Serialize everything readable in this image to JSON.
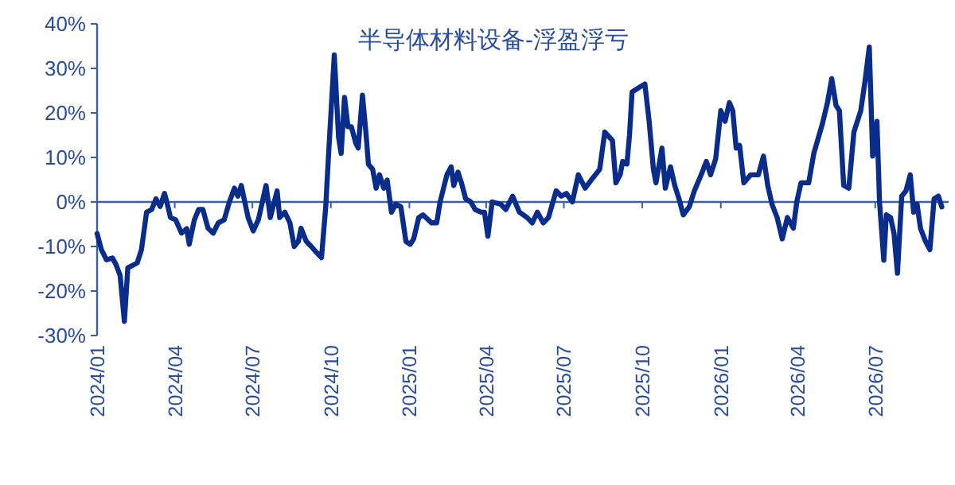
{
  "chart_data": {
    "type": "line",
    "title": "半导体材料设备-浮盈浮亏",
    "x": [
      "2024-01-01",
      "2024-01-06",
      "2024-01-12",
      "2024-01-19",
      "2024-01-23",
      "2024-01-28",
      "2024-02-02",
      "2024-02-06",
      "2024-02-17",
      "2024-02-22",
      "2024-02-28",
      "2024-03-05",
      "2024-03-10",
      "2024-03-15",
      "2024-03-20",
      "2024-03-24",
      "2024-03-27",
      "2024-04-02",
      "2024-04-09",
      "2024-04-15",
      "2024-04-18",
      "2024-04-24",
      "2024-04-29",
      "2024-05-04",
      "2024-05-10",
      "2024-05-16",
      "2024-05-22",
      "2024-05-29",
      "2024-06-04",
      "2024-06-10",
      "2024-06-14",
      "2024-06-18",
      "2024-06-26",
      "2024-07-02",
      "2024-07-08",
      "2024-07-17",
      "2024-07-22",
      "2024-07-26",
      "2024-07-30",
      "2024-08-02",
      "2024-08-08",
      "2024-08-14",
      "2024-08-19",
      "2024-08-24",
      "2024-08-27",
      "2024-09-02",
      "2024-09-08",
      "2024-09-14",
      "2024-09-20",
      "2024-09-25",
      "2024-09-28",
      "2024-10-05",
      "2024-10-10",
      "2024-10-13",
      "2024-10-17",
      "2024-10-21",
      "2024-10-25",
      "2024-10-30",
      "2024-11-02",
      "2024-11-07",
      "2024-11-11",
      "2024-11-14",
      "2024-11-19",
      "2024-11-23",
      "2024-11-27",
      "2024-12-02",
      "2024-12-06",
      "2024-12-11",
      "2024-12-16",
      "2024-12-22",
      "2024-12-28",
      "2025-01-02",
      "2025-01-06",
      "2025-01-12",
      "2025-01-17",
      "2025-01-27",
      "2025-02-02",
      "2025-02-06",
      "2025-02-14",
      "2025-02-19",
      "2025-02-22",
      "2025-02-27",
      "2025-03-03",
      "2025-03-08",
      "2025-03-14",
      "2025-03-19",
      "2025-03-26",
      "2025-03-30",
      "2025-04-03",
      "2025-04-08",
      "2025-04-18",
      "2025-04-24",
      "2025-05-02",
      "2025-05-10",
      "2025-05-19",
      "2025-05-25",
      "2025-05-31",
      "2025-06-07",
      "2025-06-13",
      "2025-06-22",
      "2025-06-28",
      "2025-07-04",
      "2025-07-11",
      "2025-07-18",
      "2025-07-26",
      "2025-08-02",
      "2025-08-12",
      "2025-08-18",
      "2025-08-27",
      "2025-08-31",
      "2025-09-05",
      "2025-09-08",
      "2025-09-13",
      "2025-09-16",
      "2025-09-19",
      "2025-09-24",
      "2025-10-04",
      "2025-10-09",
      "2025-10-14",
      "2025-10-17",
      "2025-10-24",
      "2025-10-28",
      "2025-11-03",
      "2025-11-08",
      "2025-11-13",
      "2025-11-18",
      "2025-11-25",
      "2025-12-01",
      "2025-12-09",
      "2025-12-15",
      "2025-12-20",
      "2025-12-26",
      "2026-01-01",
      "2026-01-06",
      "2026-01-11",
      "2026-01-15",
      "2026-01-19",
      "2026-01-23",
      "2026-01-28",
      "2026-02-05",
      "2026-02-14",
      "2026-02-20",
      "2026-02-25",
      "2026-03-02",
      "2026-03-08",
      "2026-03-14",
      "2026-03-20",
      "2026-03-27",
      "2026-03-31",
      "2026-04-05",
      "2026-04-14",
      "2026-04-20",
      "2026-04-30",
      "2026-05-06",
      "2026-05-11",
      "2026-05-16",
      "2026-05-20",
      "2026-05-25",
      "2026-05-31",
      "2026-06-06",
      "2026-06-11",
      "2026-06-14",
      "2026-06-19",
      "2026-06-24",
      "2026-06-28",
      "2026-07-03",
      "2026-07-06",
      "2026-07-11",
      "2026-07-14",
      "2026-07-19",
      "2026-07-23",
      "2026-07-27",
      "2026-08-01",
      "2026-08-06",
      "2026-08-11",
      "2026-08-15",
      "2026-08-19",
      "2026-08-23",
      "2026-08-29",
      "2026-09-03",
      "2026-09-08",
      "2026-09-13",
      "2026-09-17"
    ],
    "series": [
      {
        "color": "#0a2d8c",
        "values": [
          -7.1,
          -10.7,
          -13,
          -12.6,
          -14,
          -16.5,
          -26.8,
          -14.8,
          -13.7,
          -10.7,
          -2.3,
          -1.7,
          0.7,
          -1,
          1.9,
          -1,
          -3.5,
          -4,
          -7,
          -6,
          -9.5,
          -4,
          -1.7,
          -1.7,
          -5.9,
          -7,
          -4.7,
          -4,
          0,
          3.1,
          1.3,
          3.7,
          -3.5,
          -6.5,
          -4,
          3.7,
          -3.5,
          -0.5,
          2.5,
          -3.5,
          -2.3,
          -4.7,
          -10,
          -8.8,
          -5.9,
          -8.8,
          -10,
          -11.3,
          -12.5,
          -1,
          9.7,
          33,
          14.5,
          10.9,
          23.5,
          16.9,
          16.9,
          13.3,
          12.1,
          24,
          15.7,
          8.5,
          7.3,
          3.1,
          6.1,
          3.1,
          4.9,
          -2.3,
          -0.5,
          -1.1,
          -8.9,
          -9.5,
          -8.3,
          -3.5,
          -2.9,
          -4.7,
          -4.7,
          0,
          6.1,
          7.9,
          3.7,
          6.7,
          4.3,
          0.7,
          0,
          -1.7,
          -2.3,
          -2.3,
          -7.7,
          0,
          -0.5,
          -1.7,
          1.3,
          -2.3,
          -3.5,
          -4.7,
          -2.3,
          -4.7,
          -3.5,
          2.5,
          1.3,
          1.9,
          0,
          6.1,
          3.1,
          4.9,
          7.3,
          15.7,
          13.8,
          4.3,
          6.1,
          9.1,
          8.5,
          15.1,
          24.7,
          25.3,
          26.5,
          18.1,
          7.3,
          4.3,
          12.1,
          3.1,
          7.9,
          3.7,
          0.7,
          -2.9,
          -1.1,
          2.5,
          6.1,
          9.1,
          6.1,
          9.7,
          20.5,
          18.1,
          22.3,
          20.5,
          12.1,
          12.7,
          4.3,
          6.1,
          6.1,
          10.3,
          3.7,
          -0.5,
          -3.5,
          -8.3,
          -3.5,
          -5.9,
          0,
          4.3,
          4.3,
          10.9,
          17.5,
          22.3,
          27.7,
          21.7,
          20.5,
          3.7,
          3.1,
          15.7,
          18.7,
          20.5,
          27.1,
          34.8,
          10.3,
          18.1,
          0,
          -13.1,
          -2.9,
          -3.5,
          -7.1,
          -16,
          1.3,
          2.5,
          6.1,
          -2.3,
          -0.5,
          -5.9,
          -8.9,
          -10.7,
          0.7,
          1.3,
          -1.1
        ]
      }
    ],
    "xlim": [
      "2024-01-01",
      "2026-09-25"
    ],
    "xticks": [
      {
        "value": "2024-01-01",
        "label": "2024/01"
      },
      {
        "value": "2024-04-01",
        "label": "2024/04"
      },
      {
        "value": "2024-07-01",
        "label": "2024/07"
      },
      {
        "value": "2024-10-01",
        "label": "2024/10"
      },
      {
        "value": "2025-01-01",
        "label": "2025/01"
      },
      {
        "value": "2025-04-01",
        "label": "2025/04"
      },
      {
        "value": "2025-07-01",
        "label": "2025/07"
      },
      {
        "value": "2025-10-01",
        "label": "2025/10"
      },
      {
        "value": "2026-01-01",
        "label": "2026/01"
      },
      {
        "value": "2026-04-01",
        "label": "2026/04"
      },
      {
        "value": "2026-07-01",
        "label": "2026/07"
      }
    ],
    "ylim": [
      -30,
      40
    ],
    "yticks": [
      {
        "value": -30,
        "label": "-30%"
      },
      {
        "value": -20,
        "label": "-20%"
      },
      {
        "value": -10,
        "label": "-10%"
      },
      {
        "value": 0,
        "label": "0%"
      },
      {
        "value": 10,
        "label": "10%"
      },
      {
        "value": 20,
        "label": "20%"
      },
      {
        "value": 30,
        "label": "30%"
      },
      {
        "value": 40,
        "label": "40%"
      }
    ],
    "ref_lines": [
      {
        "axis": "y",
        "value": 0,
        "color": "#3a5fae"
      }
    ],
    "line_style": "solid"
  }
}
